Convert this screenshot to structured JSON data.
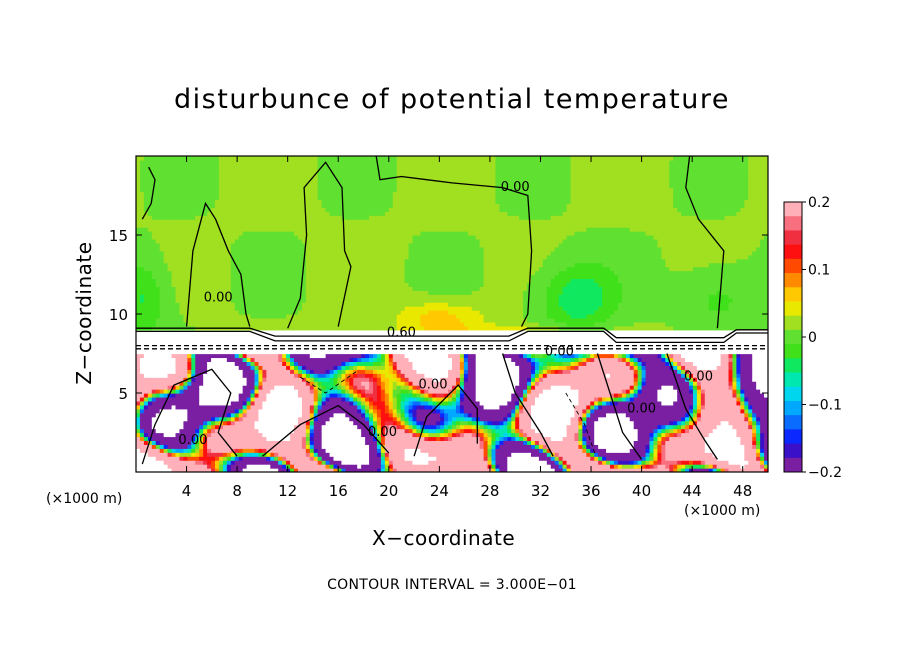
{
  "chart_data": {
    "type": "heatmap",
    "title": "disturbunce of potential temperature",
    "xlabel": "X−coordinate",
    "ylabel": "Z−coordinate",
    "x_unit_left": "(×1000 m)",
    "x_unit_right": "(×1000 m)",
    "footnote": "CONTOUR INTERVAL = 3.000E−01",
    "xlim": [
      0,
      50
    ],
    "ylim": [
      0,
      20
    ],
    "x_ticks": [
      4,
      8,
      12,
      16,
      20,
      24,
      28,
      32,
      36,
      40,
      44,
      48
    ],
    "x_tick_labels": [
      "4",
      "8",
      "12",
      "16",
      "20",
      "24",
      "28",
      "32",
      "36",
      "40",
      "44",
      "48"
    ],
    "y_ticks": [
      5,
      10,
      15
    ],
    "y_tick_labels": [
      "5",
      "10",
      "15"
    ],
    "colorbar": {
      "range": [
        -0.2,
        0.2
      ],
      "ticks": [
        0.2,
        0.1,
        0,
        -0.1,
        -0.2
      ],
      "tick_labels": [
        "0.2",
        "0.1",
        "0",
        "−0.1",
        "−0.2"
      ],
      "colors": [
        "#7a1fa2",
        "#3a10c8",
        "#0a28ff",
        "#0a6cff",
        "#00a8ff",
        "#00d6ee",
        "#00e8b0",
        "#10e860",
        "#40e01a",
        "#60e030",
        "#a0e020",
        "#e8e800",
        "#ffc800",
        "#ff8a00",
        "#ff4a00",
        "#ff1010",
        "#f03040",
        "#f87080",
        "#ffb0b8"
      ]
    },
    "contour_labels": [
      {
        "text": "0.00",
        "x": 30.0,
        "z": 18.0
      },
      {
        "text": "0.60",
        "x": 21.0,
        "z": 8.8
      },
      {
        "text": "0.00",
        "x": 33.5,
        "z": 7.6
      },
      {
        "text": "0.00",
        "x": 6.5,
        "z": 11.0
      },
      {
        "text": "0.00",
        "x": 4.5,
        "z": 2.0
      },
      {
        "text": "0.00",
        "x": 19.5,
        "z": 2.5
      },
      {
        "text": "0.00",
        "x": 44.5,
        "z": 6.0
      },
      {
        "text": "0.00",
        "x": 40.0,
        "z": 4.0
      },
      {
        "text": "0.00",
        "x": 23.5,
        "z": 5.5
      }
    ]
  }
}
